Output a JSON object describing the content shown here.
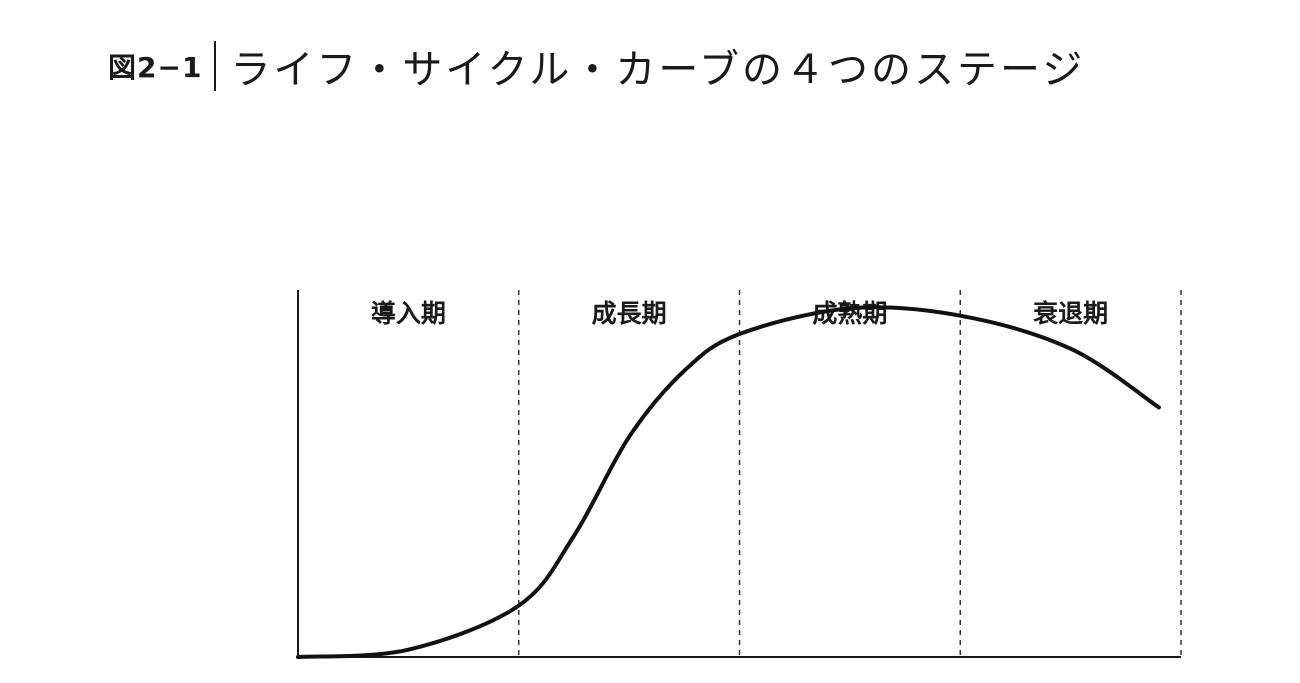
{
  "figure": {
    "number": "図2−1",
    "title": "ライフ・サイクル・カーブの４つのステージ"
  },
  "chart_data": {
    "type": "line",
    "title": "ライフ・サイクル・カーブの４つのステージ",
    "xlabel": "",
    "ylabel": "",
    "grid": false,
    "legend": "none",
    "xlim": [
      0,
      4
    ],
    "ylim": [
      0,
      1
    ],
    "stages": [
      "導入期",
      "成長期",
      "成熟期",
      "衰退期"
    ],
    "stage_boundaries": [
      1,
      2,
      3,
      4
    ],
    "series": [
      {
        "points": [
          [
            0.0,
            0.0
          ],
          [
            0.5,
            0.02
          ],
          [
            1.0,
            0.14
          ],
          [
            1.25,
            0.33
          ],
          [
            1.5,
            0.6
          ],
          [
            1.75,
            0.78
          ],
          [
            2.0,
            0.88
          ],
          [
            2.5,
            0.95
          ],
          [
            3.0,
            0.93
          ],
          [
            3.5,
            0.84
          ],
          [
            3.9,
            0.68
          ]
        ]
      }
    ]
  }
}
